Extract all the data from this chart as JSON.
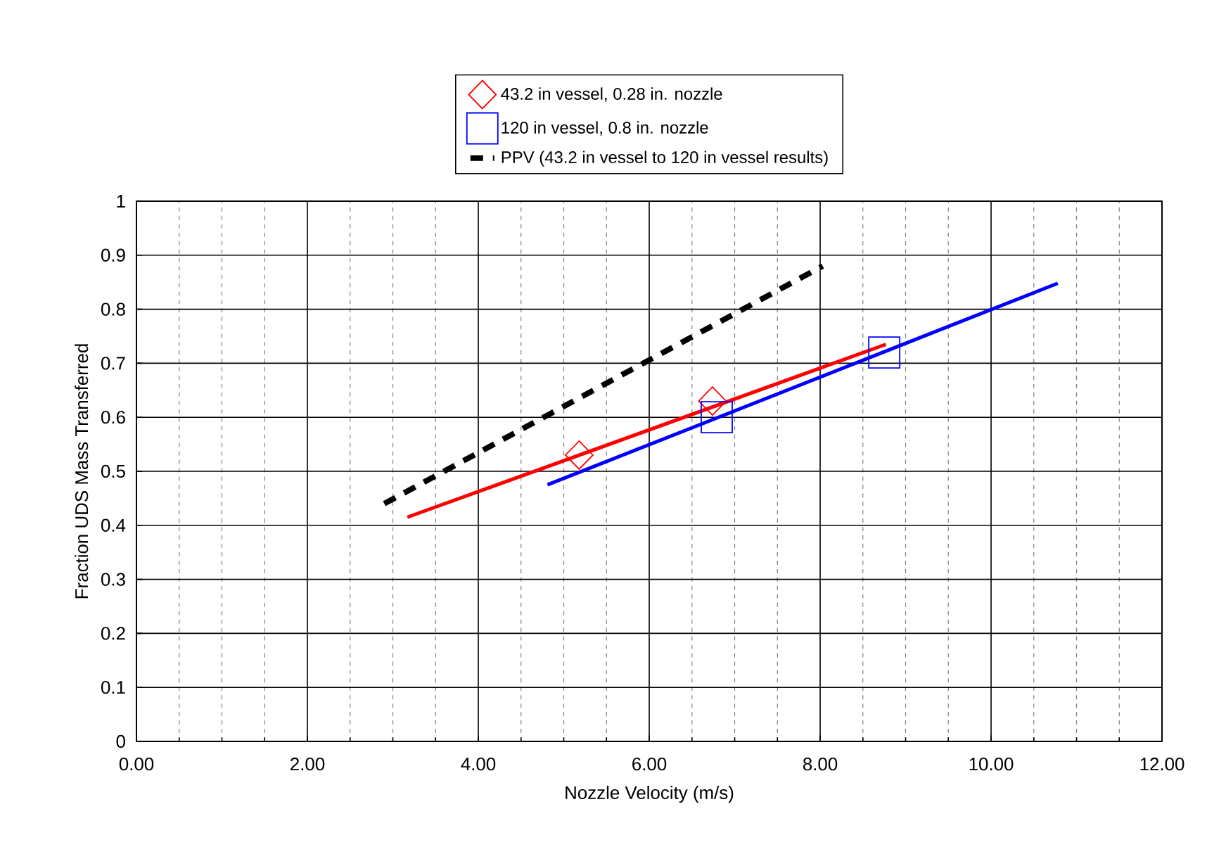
{
  "chart_data": {
    "type": "scatter",
    "xlabel": "Nozzle Velocity (m/s)",
    "ylabel": "Fraction UDS Mass Transferred",
    "xlim": [
      0,
      12
    ],
    "ylim": [
      0,
      1
    ],
    "xticks": [
      {
        "value": 0,
        "label": "0.00"
      },
      {
        "value": 2,
        "label": "2.00"
      },
      {
        "value": 4,
        "label": "4.00"
      },
      {
        "value": 6,
        "label": "6.00"
      },
      {
        "value": 8,
        "label": "8.00"
      },
      {
        "value": 10,
        "label": "10.00"
      },
      {
        "value": 12,
        "label": "12.00"
      }
    ],
    "yticks": [
      0,
      0.1,
      0.2,
      0.3,
      0.4,
      0.5,
      0.6,
      0.7,
      0.8,
      0.9,
      1
    ],
    "grid": true,
    "legend": "top",
    "series": [
      {
        "name": "43.2 in vessel, 0.28 in. nozzle",
        "marker": "diamond",
        "color": "#ff0000",
        "x": [
          5.18,
          6.74
        ],
        "values": [
          0.53,
          0.63
        ]
      },
      {
        "name": "120 in vessel, 0.8 in. nozzle",
        "marker": "square",
        "color": "#0000ff",
        "x": [
          6.79,
          8.75
        ],
        "values": [
          0.6,
          0.72
        ]
      },
      {
        "name": "PPV (43.2 in vessel to 120 in vessel results)",
        "type": "line",
        "line_style": "dashed",
        "color": "#000000",
        "x": [
          2.9,
          8.03
        ],
        "values": [
          0.44,
          0.88
        ]
      },
      {
        "type": "line",
        "line_style": "solid",
        "color": "#ff0000",
        "x": [
          3.17,
          8.77
        ],
        "values": [
          0.415,
          0.735
        ]
      },
      {
        "type": "line",
        "line_style": "solid",
        "color": "#0000ff",
        "x": [
          4.81,
          10.78
        ],
        "values": [
          0.475,
          0.848
        ]
      }
    ]
  }
}
